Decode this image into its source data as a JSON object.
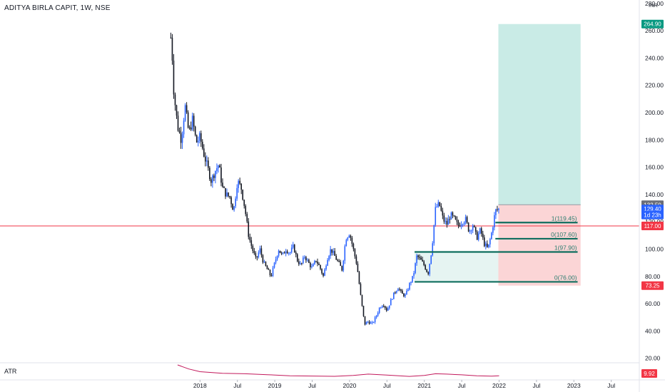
{
  "header": {
    "symbol_title": "ADITYA BIRLA CAPIT, 1W, NSE"
  },
  "colors": {
    "up": "#2962ff",
    "down": "#131722",
    "axis_text": "#131722",
    "separator": "#e0e3eb",
    "support_line": "#0f6e5e",
    "hline": "#f23645",
    "target_zone": "#c9ebe6",
    "stop_zone": "#fbd5d6",
    "lower_zone": "#e6f4f2",
    "atr_line": "#c2185b",
    "tag_green": "#089981",
    "tag_gray": "#6a6d78",
    "tag_blue": "#2962ff",
    "tag_red": "#f23645"
  },
  "chart_data": {
    "type": "candlestick",
    "title": "ADITYA BIRLA CAPIT, 1W, NSE",
    "y_axis": {
      "unit_label": "INR",
      "ticks": [
        "280.00",
        "260.00",
        "240.00",
        "220.00",
        "200.00",
        "180.00",
        "160.00",
        "140.00",
        "120.00",
        "100.00",
        "80.00",
        "60.00",
        "40.00",
        "20.00"
      ],
      "ylim": [
        18,
        282
      ]
    },
    "x_axis": {
      "ticks": [
        {
          "label": "2018",
          "t": 2018.0
        },
        {
          "label": "Jul",
          "t": 2018.5
        },
        {
          "label": "2019",
          "t": 2019.0
        },
        {
          "label": "Jul",
          "t": 2019.5
        },
        {
          "label": "2020",
          "t": 2020.0
        },
        {
          "label": "Jul",
          "t": 2020.5
        },
        {
          "label": "2021",
          "t": 2021.0
        },
        {
          "label": "Jul",
          "t": 2021.5
        },
        {
          "label": "2022",
          "t": 2022.0
        },
        {
          "label": "Jul",
          "t": 2022.5
        },
        {
          "label": "2023",
          "t": 2023.0
        },
        {
          "label": "Jul",
          "t": 2023.5
        }
      ],
      "xlim": [
        2017.7,
        2023.95
      ]
    },
    "price_path": [
      [
        2017.61,
        255
      ],
      [
        2017.63,
        240
      ],
      [
        2017.65,
        215
      ],
      [
        2017.7,
        190
      ],
      [
        2017.75,
        180
      ],
      [
        2017.8,
        205
      ],
      [
        2017.85,
        185
      ],
      [
        2017.9,
        195
      ],
      [
        2017.95,
        178
      ],
      [
        2018.0,
        182
      ],
      [
        2018.05,
        170
      ],
      [
        2018.1,
        160
      ],
      [
        2018.15,
        150
      ],
      [
        2018.2,
        157
      ],
      [
        2018.25,
        162
      ],
      [
        2018.3,
        145
      ],
      [
        2018.35,
        140
      ],
      [
        2018.4,
        138
      ],
      [
        2018.45,
        128
      ],
      [
        2018.5,
        150
      ],
      [
        2018.55,
        145
      ],
      [
        2018.6,
        130
      ],
      [
        2018.65,
        110
      ],
      [
        2018.7,
        100
      ],
      [
        2018.75,
        92
      ],
      [
        2018.8,
        100
      ],
      [
        2018.85,
        90
      ],
      [
        2018.9,
        85
      ],
      [
        2018.95,
        80
      ],
      [
        2019.0,
        90
      ],
      [
        2019.05,
        100
      ],
      [
        2019.1,
        95
      ],
      [
        2019.15,
        100
      ],
      [
        2019.2,
        97
      ],
      [
        2019.25,
        102
      ],
      [
        2019.3,
        92
      ],
      [
        2019.35,
        88
      ],
      [
        2019.4,
        95
      ],
      [
        2019.45,
        90
      ],
      [
        2019.5,
        86
      ],
      [
        2019.55,
        92
      ],
      [
        2019.6,
        87
      ],
      [
        2019.65,
        80
      ],
      [
        2019.7,
        93
      ],
      [
        2019.75,
        100
      ],
      [
        2019.8,
        95
      ],
      [
        2019.85,
        90
      ],
      [
        2019.9,
        85
      ],
      [
        2019.95,
        108
      ],
      [
        2020.0,
        112
      ],
      [
        2020.05,
        100
      ],
      [
        2020.1,
        88
      ],
      [
        2020.15,
        65
      ],
      [
        2020.2,
        45
      ],
      [
        2020.25,
        47
      ],
      [
        2020.3,
        45
      ],
      [
        2020.35,
        50
      ],
      [
        2020.4,
        57
      ],
      [
        2020.45,
        60
      ],
      [
        2020.5,
        55
      ],
      [
        2020.55,
        62
      ],
      [
        2020.6,
        68
      ],
      [
        2020.65,
        72
      ],
      [
        2020.7,
        67
      ],
      [
        2020.75,
        66
      ],
      [
        2020.8,
        74
      ],
      [
        2020.85,
        80
      ],
      [
        2020.9,
        95
      ],
      [
        2020.95,
        92
      ],
      [
        2021.0,
        88
      ],
      [
        2021.05,
        82
      ],
      [
        2021.1,
        100
      ],
      [
        2021.15,
        130
      ],
      [
        2021.2,
        133
      ],
      [
        2021.25,
        122
      ],
      [
        2021.3,
        118
      ],
      [
        2021.35,
        125
      ],
      [
        2021.4,
        122
      ],
      [
        2021.45,
        117
      ],
      [
        2021.5,
        120
      ],
      [
        2021.55,
        122
      ],
      [
        2021.6,
        113
      ],
      [
        2021.65,
        118
      ],
      [
        2021.7,
        108
      ],
      [
        2021.75,
        114
      ],
      [
        2021.8,
        104
      ],
      [
        2021.85,
        100
      ],
      [
        2021.9,
        112
      ],
      [
        2021.95,
        128
      ],
      [
        2022.0,
        129.4
      ]
    ],
    "last_price": 129.4,
    "hline": {
      "value": 117.0,
      "label": "117.00"
    },
    "fib_levels": [
      {
        "label": "1(119.45)",
        "value": 119.45,
        "t_start": 2021.95,
        "t_end": 2023.05
      },
      {
        "label": "0(107.60)",
        "value": 107.6,
        "t_start": 2021.95,
        "t_end": 2023.05
      },
      {
        "label": "1(97.90)",
        "value": 97.9,
        "t_start": 2020.87,
        "t_end": 2023.05
      },
      {
        "label": "0(76.00)",
        "value": 76.0,
        "t_start": 2020.87,
        "t_end": 2023.05
      }
    ],
    "position_box": {
      "t_start": 2021.99,
      "t_end": 2023.09,
      "entry": 132.5,
      "target": 264.9,
      "stop": 73.25
    },
    "lower_zone": {
      "t_start": 2020.87,
      "t_end": 2023.05,
      "low": 76.0,
      "high": 97.9
    },
    "price_tags": [
      {
        "label": "264.90",
        "value": 264.9,
        "kind": "green"
      },
      {
        "label": "132.50",
        "value": 132.5,
        "kind": "gray"
      },
      {
        "label": "129.40",
        "value": 129.4,
        "kind": "blue"
      },
      {
        "label": "1d 23h",
        "value": 125.0,
        "kind": "blue"
      },
      {
        "label": "117.00",
        "value": 117.0,
        "kind": "red"
      },
      {
        "label": "73.25",
        "value": 73.25,
        "kind": "red"
      }
    ],
    "atr": {
      "label": "ATR",
      "value_label": "9.92",
      "path": [
        [
          2017.7,
          1.0
        ],
        [
          2017.85,
          0.7
        ],
        [
          2018.0,
          0.5
        ],
        [
          2018.3,
          0.38
        ],
        [
          2018.6,
          0.35
        ],
        [
          2018.9,
          0.28
        ],
        [
          2019.2,
          0.2
        ],
        [
          2019.5,
          0.18
        ],
        [
          2019.8,
          0.16
        ],
        [
          2020.05,
          0.22
        ],
        [
          2020.25,
          0.32
        ],
        [
          2020.5,
          0.25
        ],
        [
          2020.8,
          0.15
        ],
        [
          2021.0,
          0.22
        ],
        [
          2021.15,
          0.35
        ],
        [
          2021.3,
          0.32
        ],
        [
          2021.5,
          0.27
        ],
        [
          2021.7,
          0.2
        ],
        [
          2021.9,
          0.17
        ],
        [
          2022.0,
          0.2
        ]
      ]
    }
  }
}
